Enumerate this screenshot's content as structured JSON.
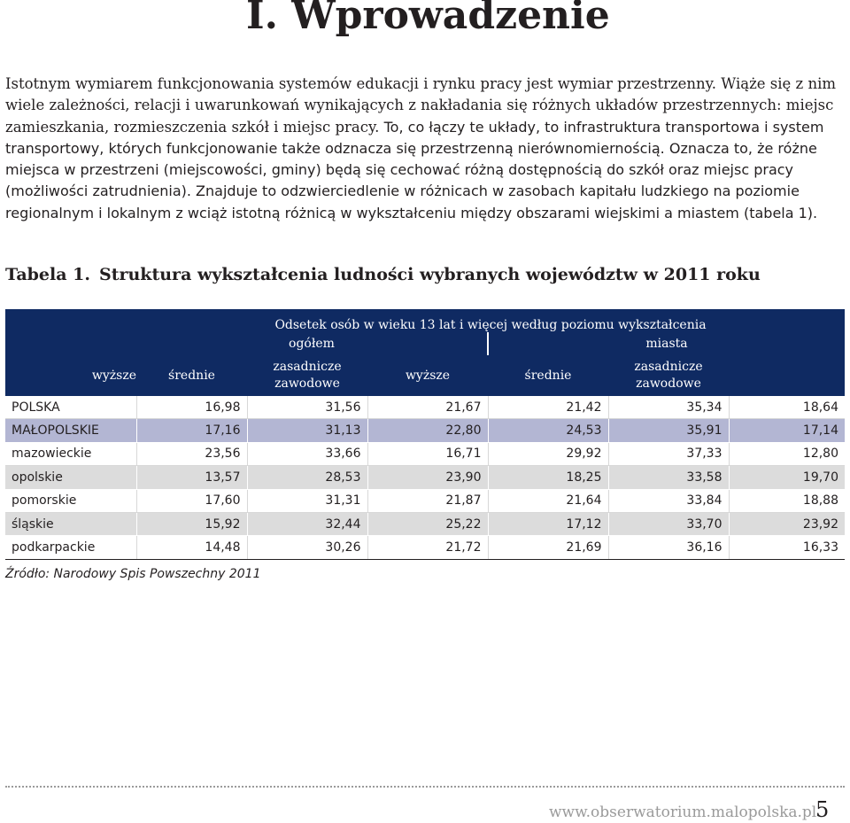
{
  "heading": "I. Wprowadzenie",
  "intro": {
    "part_a": "Istotnym wymiarem funkcjonowania systemów edukacji i rynku pracy jest wymiar przestrzenny. Wiąże się z nim wiele zależności, relacji i uwarunkowań wynikających z nakładania się różnych układów przestrzennych: miejsc zamieszkania, rozmieszczenia szkół i miejsc pracy.",
    "part_b": "To, co łączy te układy, to infrastruktura transportowa i system transportowy, których funkcjonowanie także odznacza się przestrzenną nierównomiernością. Oznacza to, że różne miejsca w przestrzeni (miejscowości, gminy) będą się cechować różną dostępnością do szkół oraz miejsc pracy (możliwości zatrudnienia). Znajduje to odzwierciedlenie w różnicach w zasobach kapitału ludzkiego na poziomie regionalnym i lokalnym z wciąż istotną różnicą w wykształceniu między obszarami wiejskimi a miastem (tabela 1)."
  },
  "table": {
    "caption_label": "Tabela 1.",
    "caption_title": "Struktura wykształcenia ludności wybranych województw w 2011 roku",
    "header_main": "Odsetek osób w wieku 13 lat i więcej według poziomu wykształcenia",
    "group_total": "ogółem",
    "group_cities": "miasta",
    "col_higher": "wyższe",
    "col_secondary": "średnie",
    "col_vocational_line1": "zasadnicze",
    "col_vocational_line2": "zawodowe",
    "rows": [
      {
        "name": "POLSKA",
        "values": [
          "16,98",
          "31,56",
          "21,67",
          "21,42",
          "35,34",
          "18,64"
        ]
      },
      {
        "name": "MAŁOPOLSKIE",
        "values": [
          "17,16",
          "31,13",
          "22,80",
          "24,53",
          "35,91",
          "17,14"
        ]
      },
      {
        "name": "mazowieckie",
        "values": [
          "23,56",
          "33,66",
          "16,71",
          "29,92",
          "37,33",
          "12,80"
        ]
      },
      {
        "name": "opolskie",
        "values": [
          "13,57",
          "28,53",
          "23,90",
          "18,25",
          "33,58",
          "19,70"
        ]
      },
      {
        "name": "pomorskie",
        "values": [
          "17,60",
          "31,31",
          "21,87",
          "21,64",
          "33,84",
          "18,88"
        ]
      },
      {
        "name": "śląskie",
        "values": [
          "15,92",
          "32,44",
          "25,22",
          "17,12",
          "33,70",
          "23,92"
        ]
      },
      {
        "name": "podkarpackie",
        "values": [
          "14,48",
          "30,26",
          "21,72",
          "21,69",
          "36,16",
          "16,33"
        ]
      }
    ],
    "source": "Źródło: Narodowy Spis Powszechny 2011"
  },
  "footer": {
    "url": "www.obserwatorium.malopolska.pl",
    "page_number": "5"
  },
  "colors": {
    "header_bg": "#0f2a62",
    "highlight_row": "#b3b6d3",
    "stripe_row": "#dcdcdc",
    "footer_url": "#9a9a9a"
  }
}
